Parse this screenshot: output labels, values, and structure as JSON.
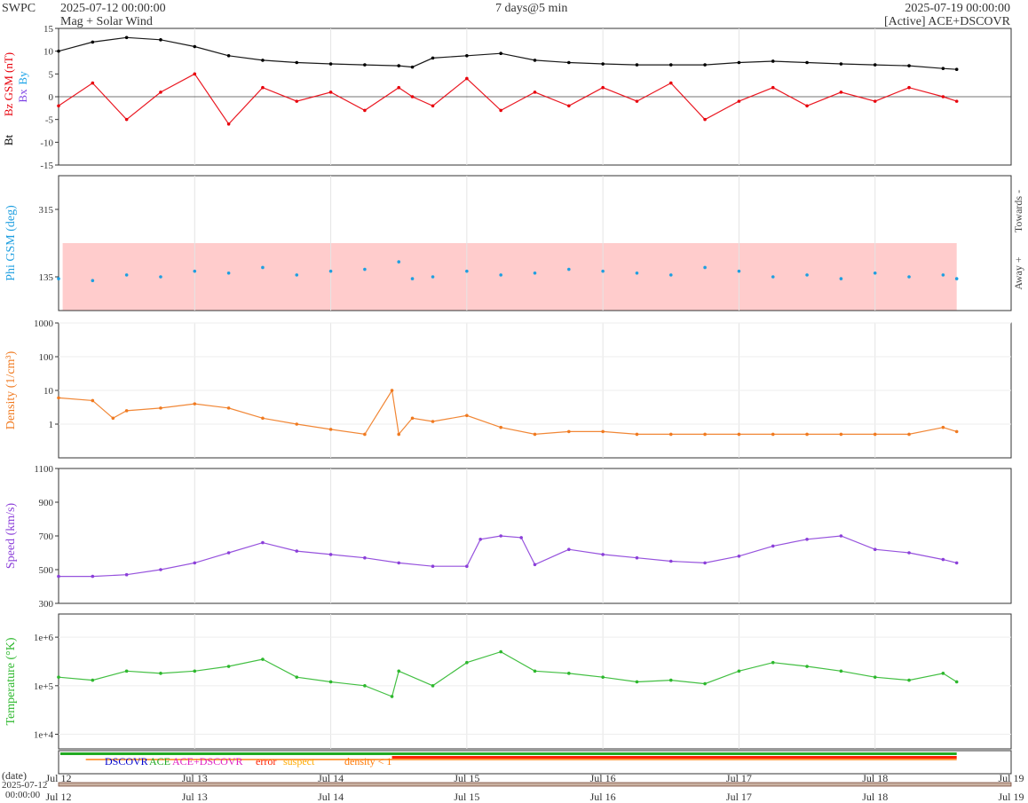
{
  "header": {
    "org": "SWPC",
    "start": "2025-07-12 00:00:00",
    "subtitle": "Mag + Solar Wind",
    "span": "7 days@5 min",
    "end": "2025-07-19 00:00:00",
    "source": "[Active] ACE+DSCOVR"
  },
  "colors": {
    "bt": "#000000",
    "bz": "#e8000b",
    "by": "#1aa3e8",
    "bx": "#7b3fe4",
    "phi": "#1f9fe0",
    "phi_band": "#ffcccc",
    "density": "#f07a20",
    "speed": "#8b3fd9",
    "temperature": "#2db82d",
    "dscovr": "#0000cc",
    "ace": "#22aa22",
    "ace_dscovr": "#e020c0",
    "error": "#ff2200",
    "suspect": "#ffaa00",
    "density_lt1": "#ff7700"
  },
  "chart_data": [
    {
      "type": "line",
      "panel": "mag",
      "ylabel_parts": [
        "Bt",
        "Bz GSM (nT)",
        "Bx",
        "By"
      ],
      "ylim": [
        -15,
        15
      ],
      "yticks": [
        -15,
        -10,
        -5,
        0,
        5,
        10,
        15
      ],
      "series": [
        {
          "name": "Bt",
          "x_days": [
            0,
            0.25,
            0.5,
            0.75,
            1.0,
            1.25,
            1.5,
            1.75,
            2.0,
            2.25,
            2.5,
            2.6,
            2.75,
            3.0,
            3.25,
            3.5,
            3.75,
            4.0,
            4.25,
            4.5,
            4.75,
            5.0,
            5.25,
            5.5,
            5.75,
            6.0,
            6.25,
            6.5,
            6.6
          ],
          "values": [
            10,
            12,
            13,
            12.5,
            11,
            9,
            8,
            7.5,
            7.2,
            7,
            6.8,
            6.5,
            8.5,
            9,
            9.5,
            8,
            7.5,
            7.2,
            7,
            7,
            7,
            7.5,
            7.8,
            7.5,
            7.2,
            7,
            6.8,
            6.2,
            6
          ]
        },
        {
          "name": "Bz",
          "x_days": [
            0,
            0.25,
            0.5,
            0.75,
            1.0,
            1.25,
            1.5,
            1.75,
            2.0,
            2.25,
            2.5,
            2.6,
            2.75,
            3.0,
            3.25,
            3.5,
            3.75,
            4.0,
            4.25,
            4.5,
            4.75,
            5.0,
            5.25,
            5.5,
            5.75,
            6.0,
            6.25,
            6.5,
            6.6
          ],
          "values": [
            -2,
            3,
            -5,
            1,
            5,
            -6,
            2,
            -1,
            1,
            -3,
            2,
            0,
            -2,
            4,
            -3,
            1,
            -2,
            2,
            -1,
            3,
            -5,
            -1,
            2,
            -2,
            1,
            -1,
            2,
            0,
            -1
          ]
        }
      ]
    },
    {
      "type": "scatter",
      "panel": "phi",
      "ylabel": "Phi GSM (deg)",
      "right_labels": [
        "Towards -",
        "Away +"
      ],
      "ylim": [
        45,
        405
      ],
      "yticks": [
        135,
        315
      ],
      "series": [
        {
          "name": "Phi",
          "x_days": [
            0,
            0.25,
            0.5,
            0.75,
            1.0,
            1.25,
            1.5,
            1.75,
            2.0,
            2.25,
            2.5,
            2.6,
            2.75,
            3.0,
            3.25,
            3.5,
            3.75,
            4.0,
            4.25,
            4.5,
            4.75,
            5.0,
            5.25,
            5.5,
            5.75,
            6.0,
            6.25,
            6.5,
            6.6
          ],
          "values": [
            130,
            125,
            140,
            135,
            150,
            145,
            160,
            140,
            150,
            155,
            175,
            130,
            135,
            150,
            140,
            145,
            155,
            150,
            145,
            140,
            160,
            150,
            135,
            140,
            130,
            145,
            135,
            140,
            130
          ]
        }
      ]
    },
    {
      "type": "line",
      "panel": "density",
      "ylabel": "Density (1/cm³)",
      "yscale": "log",
      "ylim": [
        0.1,
        1000
      ],
      "ytick_labels": [
        "1000",
        "100",
        "10",
        "1"
      ],
      "series": [
        {
          "name": "Density",
          "x_days": [
            0,
            0.25,
            0.4,
            0.5,
            0.75,
            1.0,
            1.25,
            1.5,
            1.75,
            2.0,
            2.25,
            2.45,
            2.5,
            2.6,
            2.75,
            3.0,
            3.25,
            3.5,
            3.75,
            4.0,
            4.25,
            4.5,
            4.75,
            5.0,
            5.25,
            5.5,
            5.75,
            6.0,
            6.25,
            6.5,
            6.6
          ],
          "values": [
            6,
            5,
            1.5,
            2.5,
            3,
            4,
            3,
            1.5,
            1,
            0.7,
            0.5,
            10,
            0.5,
            1.5,
            1.2,
            1.8,
            0.8,
            0.5,
            0.6,
            0.6,
            0.5,
            0.5,
            0.5,
            0.5,
            0.5,
            0.5,
            0.5,
            0.5,
            0.5,
            0.8,
            0.6
          ]
        }
      ]
    },
    {
      "type": "line",
      "panel": "speed",
      "ylabel": "Speed (km/s)",
      "ylim": [
        300,
        1100
      ],
      "yticks": [
        300,
        500,
        700,
        900,
        1100
      ],
      "series": [
        {
          "name": "Speed",
          "x_days": [
            0,
            0.25,
            0.5,
            0.75,
            1.0,
            1.25,
            1.5,
            1.75,
            2.0,
            2.25,
            2.5,
            2.75,
            3.0,
            3.1,
            3.25,
            3.4,
            3.5,
            3.75,
            4.0,
            4.25,
            4.5,
            4.75,
            5.0,
            5.25,
            5.5,
            5.75,
            6.0,
            6.25,
            6.5,
            6.6
          ],
          "values": [
            460,
            460,
            470,
            500,
            540,
            600,
            660,
            610,
            590,
            570,
            540,
            520,
            520,
            680,
            700,
            690,
            530,
            620,
            590,
            570,
            550,
            540,
            580,
            640,
            680,
            700,
            620,
            600,
            560,
            540
          ]
        }
      ]
    },
    {
      "type": "line",
      "panel": "temperature",
      "ylabel": "Temperature (°K)",
      "yscale": "log",
      "ylim": [
        5000,
        3000000
      ],
      "ytick_labels": [
        "1e+6",
        "1e+5",
        "1e+4"
      ],
      "series": [
        {
          "name": "Temperature",
          "x_days": [
            0,
            0.25,
            0.5,
            0.75,
            1.0,
            1.25,
            1.5,
            1.75,
            2.0,
            2.25,
            2.45,
            2.5,
            2.75,
            3.0,
            3.25,
            3.5,
            3.75,
            4.0,
            4.25,
            4.5,
            4.75,
            5.0,
            5.25,
            5.5,
            5.75,
            6.0,
            6.25,
            6.5,
            6.6
          ],
          "values": [
            150000,
            130000,
            200000,
            180000,
            200000,
            250000,
            350000,
            150000,
            120000,
            100000,
            60000,
            200000,
            100000,
            300000,
            500000,
            200000,
            180000,
            150000,
            120000,
            130000,
            110000,
            200000,
            300000,
            250000,
            200000,
            150000,
            130000,
            180000,
            120000
          ]
        }
      ]
    }
  ],
  "legend": {
    "dscovr": "DSCOVR",
    "ace": "ACE",
    "ace_dscovr": "ACE+DSCOVR",
    "error": "error",
    "suspect": "suspect",
    "density_lt1": "density < 1"
  },
  "xaxis": {
    "labels": [
      "Jul 12",
      "Jul 13",
      "Jul 14",
      "Jul 15",
      "Jul 16",
      "Jul 17",
      "Jul 18",
      "Jul 19"
    ],
    "date_label": "(date)",
    "start_date": "2025-07-12",
    "start_time": "00:00:00"
  }
}
